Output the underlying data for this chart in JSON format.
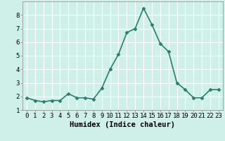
{
  "x": [
    0,
    1,
    2,
    3,
    4,
    5,
    6,
    7,
    8,
    9,
    10,
    11,
    12,
    13,
    14,
    15,
    16,
    17,
    18,
    19,
    20,
    21,
    22,
    23
  ],
  "y": [
    1.9,
    1.7,
    1.6,
    1.7,
    1.7,
    2.2,
    1.9,
    1.9,
    1.8,
    2.6,
    4.0,
    5.1,
    6.7,
    7.0,
    8.5,
    7.3,
    5.9,
    5.3,
    3.0,
    2.5,
    1.9,
    1.9,
    2.5,
    2.5
  ],
  "line_color": "#2e7d6e",
  "marker": "D",
  "marker_size": 2.5,
  "bg_color": "#cef0e8",
  "grid_color": "#ffffff",
  "xlabel": "Humidex (Indice chaleur)",
  "xlim": [
    -0.5,
    23.5
  ],
  "ylim": [
    1.0,
    9.0
  ],
  "yticks": [
    1,
    2,
    3,
    4,
    5,
    6,
    7,
    8
  ],
  "xticks": [
    0,
    1,
    2,
    3,
    4,
    5,
    6,
    7,
    8,
    9,
    10,
    11,
    12,
    13,
    14,
    15,
    16,
    17,
    18,
    19,
    20,
    21,
    22,
    23
  ],
  "tick_label_size": 6.5,
  "xlabel_size": 7.5,
  "line_width": 1.2
}
